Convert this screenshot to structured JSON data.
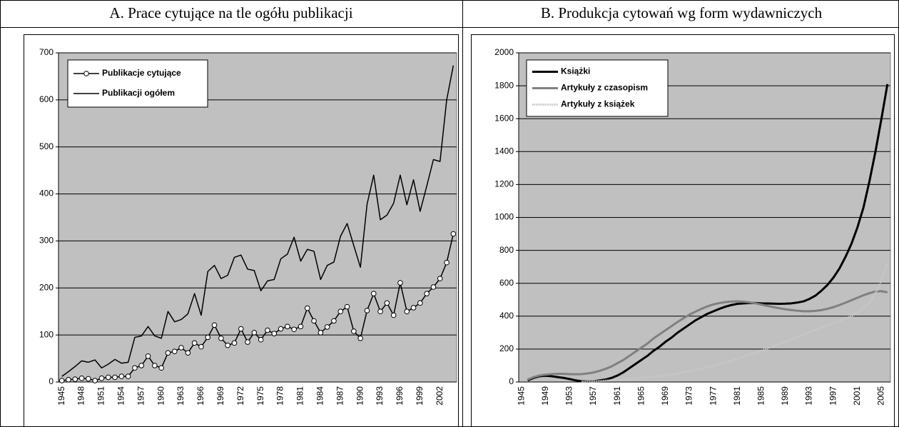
{
  "chart_data": [
    {
      "type": "line",
      "title": "A. Prace cytujące na tle ogółu publikacji",
      "categories": [
        "1945",
        null,
        null,
        "1948",
        null,
        null,
        "1951",
        null,
        null,
        "1954",
        null,
        null,
        "1957",
        null,
        null,
        "1960",
        null,
        null,
        "1963",
        null,
        null,
        "1966",
        null,
        null,
        "1969",
        null,
        null,
        "1972",
        null,
        null,
        "1975",
        null,
        null,
        "1978",
        null,
        null,
        "1981",
        null,
        null,
        "1984",
        null,
        null,
        "1987",
        null,
        null,
        "1990",
        null,
        null,
        "1993",
        null,
        null,
        "1996",
        null,
        null,
        "1999",
        null,
        null,
        "2002",
        null,
        null
      ],
      "series": [
        {
          "name": "Publikacje cytujące",
          "color": "#000000",
          "marker": "circle",
          "values": [
            3,
            5,
            6,
            8,
            7,
            3,
            8,
            10,
            10,
            12,
            12,
            30,
            35,
            55,
            35,
            30,
            62,
            65,
            73,
            62,
            83,
            75,
            95,
            121,
            93,
            78,
            83,
            113,
            85,
            105,
            90,
            110,
            103,
            113,
            118,
            112,
            118,
            157,
            130,
            105,
            117,
            130,
            150,
            160,
            108,
            93,
            152,
            188,
            150,
            168,
            142,
            211,
            150,
            158,
            168,
            188,
            202,
            220,
            254,
            315
          ]
        },
        {
          "name": "Publikacji ogółem",
          "color": "#000000",
          "values": [
            12,
            22,
            33,
            45,
            42,
            47,
            30,
            38,
            48,
            40,
            42,
            95,
            98,
            118,
            98,
            93,
            150,
            128,
            133,
            145,
            188,
            142,
            235,
            248,
            220,
            227,
            265,
            270,
            240,
            237,
            194,
            215,
            218,
            262,
            272,
            308,
            257,
            282,
            278,
            218,
            248,
            255,
            310,
            337,
            290,
            244,
            378,
            440,
            345,
            355,
            380,
            440,
            377,
            430,
            363,
            417,
            473,
            469,
            600,
            673
          ]
        }
      ],
      "ylim": [
        0,
        700
      ],
      "yticks": [
        0,
        100,
        200,
        300,
        400,
        500,
        600,
        700
      ],
      "grid": true,
      "legend": "upper left",
      "background": "#c0c0c0"
    },
    {
      "type": "line",
      "title": "B. Produkcja cytowań wg form wydawniczych",
      "categories": [
        "1945",
        null,
        null,
        null,
        "1949",
        null,
        null,
        null,
        "1953",
        null,
        null,
        null,
        "1957",
        null,
        null,
        null,
        "1961",
        null,
        null,
        null,
        "1965",
        null,
        null,
        null,
        "1969",
        null,
        null,
        null,
        "1973",
        null,
        null,
        null,
        "1977",
        null,
        null,
        null,
        "1981",
        null,
        null,
        null,
        "1985",
        null,
        null,
        null,
        "1989",
        null,
        null,
        null,
        "1993",
        null,
        null,
        null,
        "1997",
        null,
        null,
        null,
        "2001",
        null,
        null,
        null,
        "2005",
        null
      ],
      "series": [
        {
          "name": "Książki",
          "color": "#000000",
          "values": [
            null,
            10,
            25,
            35,
            38,
            35,
            30,
            25,
            18,
            10,
            5,
            3,
            5,
            10,
            15,
            25,
            40,
            60,
            85,
            110,
            135,
            160,
            190,
            215,
            245,
            270,
            300,
            325,
            350,
            375,
            395,
            415,
            430,
            445,
            458,
            468,
            475,
            478,
            480,
            480,
            478,
            477,
            476,
            475,
            476,
            478,
            483,
            490,
            505,
            525,
            555,
            590,
            635,
            690,
            760,
            840,
            940,
            1060,
            1220,
            1400,
            1600,
            1810
          ]
        },
        {
          "name": "Artykuły z czasopism",
          "color": "#808080",
          "values": [
            null,
            15,
            30,
            40,
            45,
            48,
            50,
            50,
            48,
            47,
            48,
            52,
            58,
            68,
            80,
            95,
            115,
            135,
            160,
            185,
            210,
            235,
            265,
            290,
            315,
            340,
            365,
            388,
            410,
            428,
            445,
            460,
            472,
            480,
            486,
            489,
            490,
            488,
            484,
            478,
            470,
            462,
            455,
            448,
            442,
            437,
            433,
            430,
            430,
            432,
            437,
            445,
            455,
            468,
            482,
            497,
            512,
            527,
            540,
            550,
            552,
            545
          ]
        },
        {
          "name": "Artykuły z książek",
          "color": "#c8c8c8",
          "line_style": "dotted",
          "values": [
            null,
            null,
            null,
            null,
            null,
            null,
            null,
            null,
            null,
            null,
            2,
            3,
            5,
            6,
            8,
            10,
            13,
            16,
            19,
            22,
            25,
            29,
            33,
            37,
            41,
            45,
            52,
            59,
            66,
            73,
            80,
            90,
            100,
            110,
            120,
            130,
            142,
            154,
            166,
            178,
            190,
            204,
            218,
            232,
            246,
            260,
            274,
            288,
            302,
            316,
            330,
            344,
            358,
            372,
            386,
            400,
            425,
            450,
            480,
            540,
            620,
            720
          ]
        }
      ],
      "ylim": [
        0,
        2000
      ],
      "yticks": [
        0,
        200,
        400,
        600,
        800,
        1000,
        1200,
        1400,
        1600,
        1800,
        2000
      ],
      "grid": true,
      "legend": "upper left",
      "background": "#c0c0c0"
    }
  ]
}
